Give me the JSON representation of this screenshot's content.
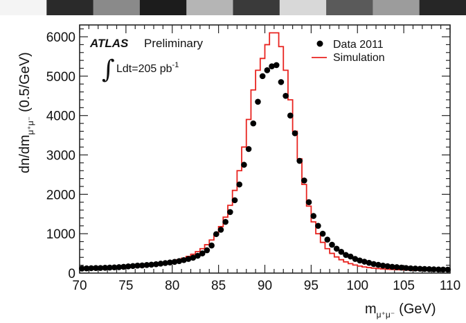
{
  "header_strip": {
    "colors": [
      "#f4f4f4",
      "#2a2a2a",
      "#8a8a8a",
      "#1c1c1c",
      "#b5b5b5",
      "#3a3a3a",
      "#d8d8d8",
      "#5a5a5a",
      "#9c9c9c",
      "#262626"
    ]
  },
  "chart_data": {
    "type": "scatter",
    "experiment": "ATLAS",
    "status": "Preliminary",
    "luminosity": {
      "integral_symbol": "∫",
      "text": "Ldt=205 pb",
      "superscript": "-1"
    },
    "xlabel": {
      "main": "m",
      "sub": "μ⁺μ⁻",
      "unit": "(GeV)"
    },
    "ylabel": {
      "main": "dn/dm",
      "sub": "μ⁺μ⁻",
      "unit": "(0.5/GeV)"
    },
    "xlim": [
      70,
      110
    ],
    "ylim": [
      0,
      6300
    ],
    "xticks": [
      "70",
      "75",
      "80",
      "85",
      "90",
      "95",
      "100",
      "105",
      "110"
    ],
    "yticks": [
      "0",
      "1000",
      "2000",
      "3000",
      "4000",
      "5000",
      "6000"
    ],
    "legend": {
      "position": "top-right",
      "data_label": "Data 2011",
      "sim_label": "Simulation"
    },
    "colors": {
      "data": "#000000",
      "simulation": "#e8231f",
      "axis": "#222222"
    },
    "series": [
      {
        "name": "Data 2011",
        "kind": "points",
        "x": [
          70.25,
          70.75,
          71.25,
          71.75,
          72.25,
          72.75,
          73.25,
          73.75,
          74.25,
          74.75,
          75.25,
          75.75,
          76.25,
          76.75,
          77.25,
          77.75,
          78.25,
          78.75,
          79.25,
          79.75,
          80.25,
          80.75,
          81.25,
          81.75,
          82.25,
          82.75,
          83.25,
          83.75,
          84.25,
          84.75,
          85.25,
          85.75,
          86.25,
          86.75,
          87.25,
          87.75,
          88.25,
          88.75,
          89.25,
          89.75,
          90.25,
          90.75,
          91.25,
          91.75,
          92.25,
          92.75,
          93.25,
          93.75,
          94.25,
          94.75,
          95.25,
          95.75,
          96.25,
          96.75,
          97.25,
          97.75,
          98.25,
          98.75,
          99.25,
          99.75,
          100.25,
          100.75,
          101.25,
          101.75,
          102.25,
          102.75,
          103.25,
          103.75,
          104.25,
          104.75,
          105.25,
          105.75,
          106.25,
          106.75,
          107.25,
          107.75,
          108.25,
          108.75,
          109.25,
          109.75
        ],
        "y": [
          115,
          120,
          125,
          128,
          130,
          135,
          140,
          145,
          150,
          160,
          170,
          180,
          190,
          195,
          205,
          215,
          225,
          240,
          255,
          270,
          285,
          305,
          330,
          360,
          390,
          440,
          500,
          580,
          700,
          990,
          1100,
          1300,
          1550,
          1850,
          2250,
          2750,
          3150,
          3800,
          4350,
          5000,
          5150,
          5250,
          5280,
          4850,
          4500,
          4000,
          3550,
          2850,
          2350,
          1800,
          1450,
          1200,
          1000,
          850,
          720,
          620,
          540,
          460,
          420,
          360,
          320,
          290,
          260,
          230,
          210,
          190,
          175,
          160,
          150,
          140,
          130,
          120,
          115,
          110,
          105,
          100,
          95,
          92,
          90,
          88
        ]
      },
      {
        "name": "Simulation",
        "kind": "step",
        "x": [
          70,
          70.5,
          71,
          71.5,
          72,
          72.5,
          73,
          73.5,
          74,
          74.5,
          75,
          75.5,
          76,
          76.5,
          77,
          77.5,
          78,
          78.5,
          79,
          79.5,
          80,
          80.5,
          81,
          81.5,
          82,
          82.5,
          83,
          83.5,
          84,
          84.5,
          85,
          85.5,
          86,
          86.5,
          87,
          87.5,
          88,
          88.5,
          89,
          89.5,
          90,
          90.5,
          91,
          91.5,
          92,
          92.5,
          93,
          93.5,
          94,
          94.5,
          95,
          95.5,
          96,
          96.5,
          97,
          97.5,
          98,
          98.5,
          99,
          99.5,
          100,
          100.5,
          101,
          101.5,
          102,
          102.5,
          103,
          103.5,
          104,
          104.5,
          105,
          105.5,
          106,
          106.5,
          107,
          107.5,
          108,
          108.5,
          109,
          109.5
        ],
        "y": [
          95,
          97,
          100,
          103,
          106,
          110,
          115,
          120,
          126,
          133,
          140,
          148,
          157,
          168,
          180,
          195,
          212,
          230,
          252,
          278,
          305,
          340,
          380,
          425,
          480,
          545,
          620,
          720,
          840,
          990,
          1180,
          1420,
          1720,
          2100,
          2600,
          3200,
          3900,
          4650,
          5150,
          5450,
          5800,
          6100,
          6100,
          5750,
          5150,
          4400,
          3600,
          2900,
          2250,
          1700,
          1300,
          1000,
          780,
          620,
          500,
          410,
          340,
          285,
          240,
          205,
          178,
          156,
          140,
          126,
          115,
          106,
          98,
          92,
          87,
          83,
          79,
          76,
          73,
          71,
          69,
          67,
          66,
          65,
          64,
          63
        ]
      }
    ]
  }
}
